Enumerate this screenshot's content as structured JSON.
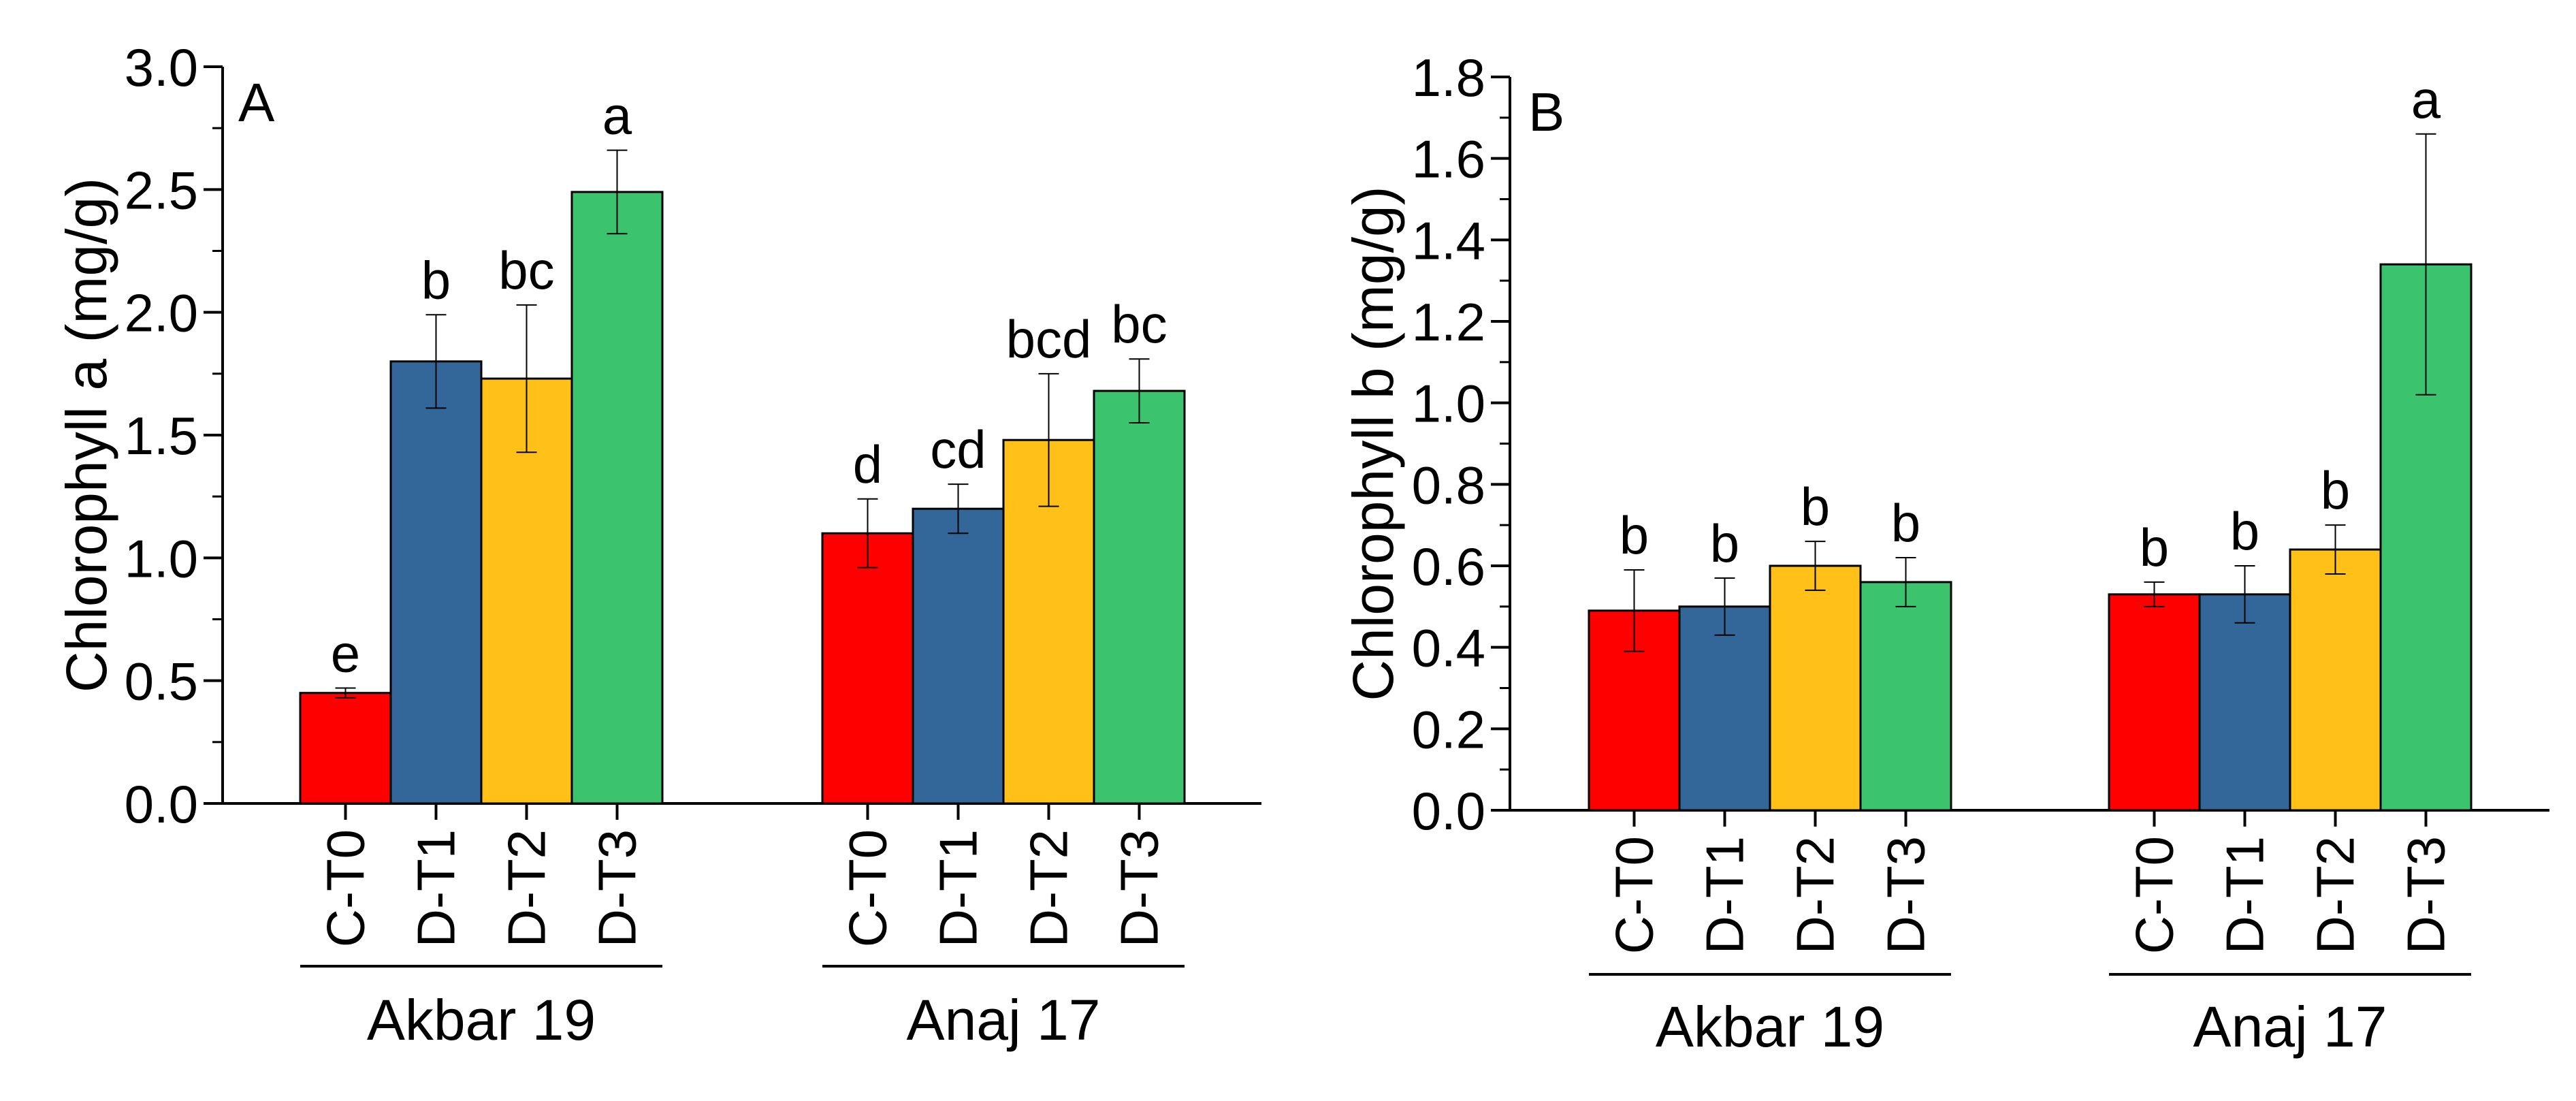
{
  "chart_data": [
    {
      "type": "bar",
      "panel": "A",
      "ylabel": "Chlorophyll a (mg/g)",
      "ylim": [
        0,
        3.0
      ],
      "yticks": [
        "0.0",
        "0.5",
        "1.0",
        "1.5",
        "2.0",
        "2.5",
        "3.0"
      ],
      "treatments": [
        "C-T0",
        "D-T1",
        "D-T2",
        "D-T3"
      ],
      "groups": [
        {
          "name": "Akbar 19",
          "bars": [
            {
              "treatment": "C-T0",
              "value": 0.45,
              "error": 0.02,
              "letter": "e"
            },
            {
              "treatment": "D-T1",
              "value": 1.8,
              "error": 0.19,
              "letter": "b"
            },
            {
              "treatment": "D-T2",
              "value": 1.73,
              "error": 0.3,
              "letter": "bc"
            },
            {
              "treatment": "D-T3",
              "value": 2.49,
              "error": 0.17,
              "letter": "a"
            }
          ]
        },
        {
          "name": "Anaj 17",
          "bars": [
            {
              "treatment": "C-T0",
              "value": 1.1,
              "error": 0.14,
              "letter": "d"
            },
            {
              "treatment": "D-T1",
              "value": 1.2,
              "error": 0.1,
              "letter": "cd"
            },
            {
              "treatment": "D-T2",
              "value": 1.48,
              "error": 0.27,
              "letter": "bcd"
            },
            {
              "treatment": "D-T3",
              "value": 1.68,
              "error": 0.13,
              "letter": "bc"
            }
          ]
        }
      ]
    },
    {
      "type": "bar",
      "panel": "B",
      "ylabel": "Chlorophyll b (mg/g)",
      "ylim": [
        0,
        1.8
      ],
      "yticks": [
        "0.0",
        "0.2",
        "0.4",
        "0.6",
        "0.8",
        "1.0",
        "1.2",
        "1.4",
        "1.6",
        "1.8"
      ],
      "treatments": [
        "C-T0",
        "D-T1",
        "D-T2",
        "D-T3"
      ],
      "groups": [
        {
          "name": "Akbar 19",
          "bars": [
            {
              "treatment": "C-T0",
              "value": 0.49,
              "error": 0.1,
              "letter": "b"
            },
            {
              "treatment": "D-T1",
              "value": 0.5,
              "error": 0.07,
              "letter": "b"
            },
            {
              "treatment": "D-T2",
              "value": 0.6,
              "error": 0.06,
              "letter": "b"
            },
            {
              "treatment": "D-T3",
              "value": 0.56,
              "error": 0.06,
              "letter": "b"
            }
          ]
        },
        {
          "name": "Anaj 17",
          "bars": [
            {
              "treatment": "C-T0",
              "value": 0.53,
              "error": 0.03,
              "letter": "b"
            },
            {
              "treatment": "D-T1",
              "value": 0.53,
              "error": 0.07,
              "letter": "b"
            },
            {
              "treatment": "D-T2",
              "value": 0.64,
              "error": 0.06,
              "letter": "b"
            },
            {
              "treatment": "D-T3",
              "value": 1.34,
              "error": 0.32,
              "letter": "a"
            }
          ]
        }
      ]
    }
  ],
  "colors": {
    "C-T0": "#ff0000",
    "D-T1": "#336699",
    "D-T2": "#ffc117",
    "D-T3": "#3cc36e",
    "axis": "#000000"
  }
}
